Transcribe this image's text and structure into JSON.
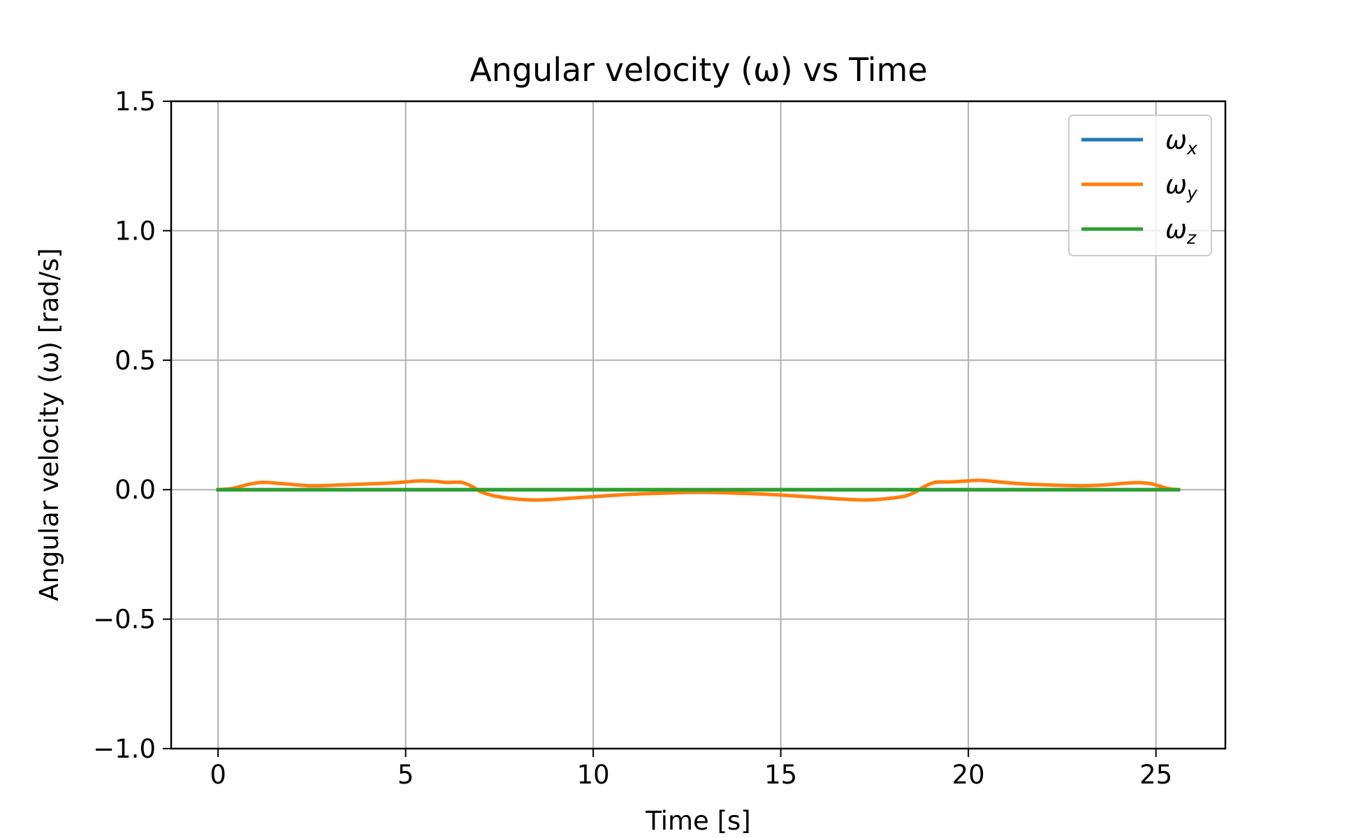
{
  "chart_data": {
    "type": "line",
    "title": "Angular velocity (ω) vs Time",
    "xlabel": "Time [s]",
    "ylabel": "Angular velocity (ω) [rad/s]",
    "xlim": [
      -1.25,
      26.85
    ],
    "ylim": [
      -1.0,
      1.5
    ],
    "xticks": [
      0,
      5,
      10,
      15,
      20,
      25
    ],
    "xtick_labels": [
      "0",
      "5",
      "10",
      "15",
      "20",
      "25"
    ],
    "yticks": [
      1.5,
      1.0,
      0.5,
      0.0,
      -0.5,
      -1.0
    ],
    "ytick_labels": [
      "1.5",
      "1.0",
      "0.5",
      "0.0",
      "−0.5",
      "−1.0"
    ],
    "grid": true,
    "legend_position": "top-right",
    "series": [
      {
        "name": "ω_x",
        "symbol": "ω",
        "subscript": "x",
        "color": "#1f77b4",
        "x": [
          0,
          25.6
        ],
        "y": [
          0.0,
          0.0
        ]
      },
      {
        "name": "ω_y",
        "symbol": "ω",
        "subscript": "y",
        "color": "#ff7f0e",
        "x": [
          0,
          0.4,
          0.8,
          1.2,
          1.8,
          2.5,
          3.2,
          4.0,
          4.6,
          5.0,
          5.4,
          5.8,
          6.1,
          6.5,
          6.8,
          7.0,
          7.4,
          8.0,
          8.5,
          9.0,
          10.0,
          11.0,
          12.0,
          12.8,
          13.5,
          14.5,
          15.5,
          16.5,
          17.2,
          17.8,
          18.3,
          18.6,
          18.8,
          19.1,
          19.5,
          20.0,
          20.3,
          20.8,
          21.5,
          22.2,
          23.0,
          23.6,
          24.2,
          24.6,
          24.9,
          25.3,
          25.6
        ],
        "y": [
          0.0,
          0.005,
          0.02,
          0.028,
          0.022,
          0.015,
          0.018,
          0.022,
          0.026,
          0.03,
          0.034,
          0.032,
          0.028,
          0.028,
          0.01,
          -0.008,
          -0.025,
          -0.037,
          -0.04,
          -0.037,
          -0.027,
          -0.018,
          -0.013,
          -0.01,
          -0.012,
          -0.017,
          -0.025,
          -0.035,
          -0.04,
          -0.035,
          -0.025,
          -0.008,
          0.01,
          0.028,
          0.03,
          0.034,
          0.036,
          0.03,
          0.022,
          0.018,
          0.015,
          0.018,
          0.025,
          0.027,
          0.022,
          0.005,
          0.0
        ]
      },
      {
        "name": "ω_z",
        "symbol": "ω",
        "subscript": "z",
        "color": "#2ca02c",
        "x": [
          0,
          25.6
        ],
        "y": [
          0.0,
          0.0
        ]
      }
    ]
  }
}
